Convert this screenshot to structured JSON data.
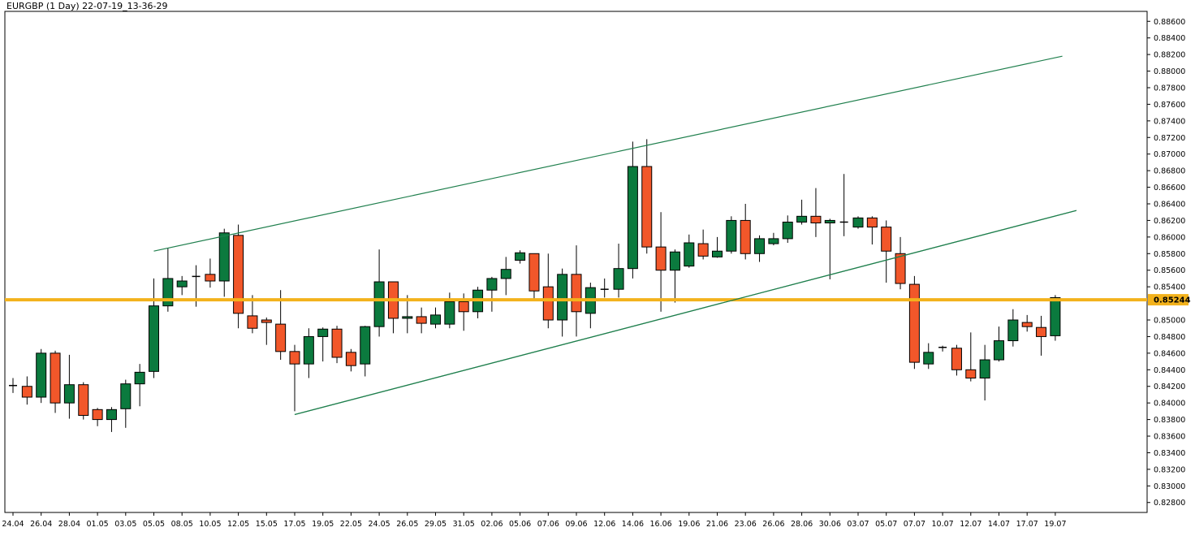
{
  "chart_data": {
    "type": "candlestick",
    "title": "EURGBP (1 Day) 22-07-19_13-36-29",
    "ylim": [
      0.8268,
      0.8872
    ],
    "colors": {
      "up": "#0b7a3e",
      "down": "#f2572a",
      "level": "#f3b21c",
      "trendline": "#1f7f4d"
    },
    "yticks": [
      "0.88600",
      "0.88400",
      "0.88200",
      "0.88000",
      "0.87800",
      "0.87600",
      "0.87400",
      "0.87200",
      "0.87000",
      "0.86800",
      "0.86600",
      "0.86400",
      "0.86200",
      "0.86000",
      "0.85800",
      "0.85600",
      "0.85400",
      "0.85244",
      "0.85000",
      "0.84800",
      "0.84600",
      "0.84400",
      "0.84200",
      "0.84000",
      "0.83800",
      "0.83600",
      "0.83400",
      "0.83200",
      "0.83000",
      "0.82800"
    ],
    "xticks": [
      {
        "label": "24.04",
        "index": 0
      },
      {
        "label": "26.04",
        "index": 2
      },
      {
        "label": "28.04",
        "index": 4
      },
      {
        "label": "01.05",
        "index": 6
      },
      {
        "label": "03.05",
        "index": 8
      },
      {
        "label": "05.05",
        "index": 10
      },
      {
        "label": "08.05",
        "index": 12
      },
      {
        "label": "10.05",
        "index": 14
      },
      {
        "label": "12.05",
        "index": 16
      },
      {
        "label": "15.05",
        "index": 18
      },
      {
        "label": "17.05",
        "index": 20
      },
      {
        "label": "19.05",
        "index": 22
      },
      {
        "label": "22.05",
        "index": 24
      },
      {
        "label": "24.05",
        "index": 26
      },
      {
        "label": "26.05",
        "index": 28
      },
      {
        "label": "29.05",
        "index": 30
      },
      {
        "label": "31.05",
        "index": 32
      },
      {
        "label": "02.06",
        "index": 34
      },
      {
        "label": "05.06",
        "index": 36
      },
      {
        "label": "07.06",
        "index": 38
      },
      {
        "label": "09.06",
        "index": 40
      },
      {
        "label": "12.06",
        "index": 42
      },
      {
        "label": "14.06",
        "index": 44
      },
      {
        "label": "16.06",
        "index": 46
      },
      {
        "label": "19.06",
        "index": 48
      },
      {
        "label": "21.06",
        "index": 50
      },
      {
        "label": "23.06",
        "index": 52
      },
      {
        "label": "26.06",
        "index": 54
      },
      {
        "label": "28.06",
        "index": 56
      },
      {
        "label": "30.06",
        "index": 58
      },
      {
        "label": "03.07",
        "index": 60
      },
      {
        "label": "05.07",
        "index": 62
      },
      {
        "label": "07.07",
        "index": 64
      },
      {
        "label": "10.07",
        "index": 66
      },
      {
        "label": "12.07",
        "index": 68
      },
      {
        "label": "14.07",
        "index": 70
      },
      {
        "label": "17.07",
        "index": 72
      },
      {
        "label": "19.07",
        "index": 74
      }
    ],
    "candles": [
      {
        "o": 0.8421,
        "h": 0.843,
        "l": 0.8412,
        "c": 0.8421
      },
      {
        "o": 0.842,
        "h": 0.8432,
        "l": 0.8398,
        "c": 0.8407
      },
      {
        "o": 0.8407,
        "h": 0.8465,
        "l": 0.84,
        "c": 0.846
      },
      {
        "o": 0.846,
        "h": 0.8463,
        "l": 0.8388,
        "c": 0.84
      },
      {
        "o": 0.84,
        "h": 0.8458,
        "l": 0.8381,
        "c": 0.8422
      },
      {
        "o": 0.8422,
        "h": 0.8425,
        "l": 0.838,
        "c": 0.8385
      },
      {
        "o": 0.8392,
        "h": 0.8394,
        "l": 0.8372,
        "c": 0.838
      },
      {
        "o": 0.838,
        "h": 0.8395,
        "l": 0.8365,
        "c": 0.8392
      },
      {
        "o": 0.8393,
        "h": 0.8428,
        "l": 0.837,
        "c": 0.8423
      },
      {
        "o": 0.8423,
        "h": 0.8447,
        "l": 0.8396,
        "c": 0.8437
      },
      {
        "o": 0.8438,
        "h": 0.855,
        "l": 0.843,
        "c": 0.8517
      },
      {
        "o": 0.8517,
        "h": 0.8587,
        "l": 0.851,
        "c": 0.855
      },
      {
        "o": 0.854,
        "h": 0.8553,
        "l": 0.853,
        "c": 0.8547
      },
      {
        "o": 0.8553,
        "h": 0.8566,
        "l": 0.8516,
        "c": 0.8552
      },
      {
        "o": 0.8555,
        "h": 0.8574,
        "l": 0.8539,
        "c": 0.8547
      },
      {
        "o": 0.8547,
        "h": 0.861,
        "l": 0.8528,
        "c": 0.8605
      },
      {
        "o": 0.8602,
        "h": 0.8615,
        "l": 0.849,
        "c": 0.8508
      },
      {
        "o": 0.8505,
        "h": 0.853,
        "l": 0.8484,
        "c": 0.849
      },
      {
        "o": 0.85,
        "h": 0.8503,
        "l": 0.847,
        "c": 0.8497
      },
      {
        "o": 0.8495,
        "h": 0.8536,
        "l": 0.8452,
        "c": 0.8462
      },
      {
        "o": 0.8462,
        "h": 0.847,
        "l": 0.839,
        "c": 0.8447
      },
      {
        "o": 0.8447,
        "h": 0.849,
        "l": 0.843,
        "c": 0.848
      },
      {
        "o": 0.848,
        "h": 0.8491,
        "l": 0.845,
        "c": 0.8489
      },
      {
        "o": 0.8489,
        "h": 0.8493,
        "l": 0.8448,
        "c": 0.8455
      },
      {
        "o": 0.8461,
        "h": 0.8465,
        "l": 0.8438,
        "c": 0.8445
      },
      {
        "o": 0.8447,
        "h": 0.8493,
        "l": 0.8432,
        "c": 0.8492
      },
      {
        "o": 0.8492,
        "h": 0.8585,
        "l": 0.848,
        "c": 0.8546
      },
      {
        "o": 0.8546,
        "h": 0.8546,
        "l": 0.8484,
        "c": 0.8502
      },
      {
        "o": 0.8502,
        "h": 0.853,
        "l": 0.8484,
        "c": 0.8504
      },
      {
        "o": 0.8504,
        "h": 0.8515,
        "l": 0.8484,
        "c": 0.8496
      },
      {
        "o": 0.8495,
        "h": 0.8515,
        "l": 0.849,
        "c": 0.8506
      },
      {
        "o": 0.8495,
        "h": 0.8533,
        "l": 0.849,
        "c": 0.8522
      },
      {
        "o": 0.8522,
        "h": 0.8532,
        "l": 0.8487,
        "c": 0.851
      },
      {
        "o": 0.851,
        "h": 0.854,
        "l": 0.8502,
        "c": 0.8536
      },
      {
        "o": 0.8536,
        "h": 0.8552,
        "l": 0.851,
        "c": 0.855
      },
      {
        "o": 0.855,
        "h": 0.8576,
        "l": 0.853,
        "c": 0.8561
      },
      {
        "o": 0.8572,
        "h": 0.8584,
        "l": 0.8568,
        "c": 0.8581
      },
      {
        "o": 0.858,
        "h": 0.858,
        "l": 0.8523,
        "c": 0.8535
      },
      {
        "o": 0.854,
        "h": 0.858,
        "l": 0.849,
        "c": 0.85
      },
      {
        "o": 0.85,
        "h": 0.8562,
        "l": 0.848,
        "c": 0.8555
      },
      {
        "o": 0.8555,
        "h": 0.859,
        "l": 0.848,
        "c": 0.851
      },
      {
        "o": 0.8508,
        "h": 0.8545,
        "l": 0.849,
        "c": 0.8539
      },
      {
        "o": 0.8537,
        "h": 0.855,
        "l": 0.8527,
        "c": 0.8537
      },
      {
        "o": 0.8537,
        "h": 0.8592,
        "l": 0.8527,
        "c": 0.8562
      },
      {
        "o": 0.8562,
        "h": 0.8715,
        "l": 0.855,
        "c": 0.8685
      },
      {
        "o": 0.8685,
        "h": 0.8718,
        "l": 0.858,
        "c": 0.8588
      },
      {
        "o": 0.8588,
        "h": 0.863,
        "l": 0.851,
        "c": 0.856
      },
      {
        "o": 0.856,
        "h": 0.8585,
        "l": 0.8521,
        "c": 0.8582
      },
      {
        "o": 0.8565,
        "h": 0.8603,
        "l": 0.8563,
        "c": 0.8593
      },
      {
        "o": 0.8592,
        "h": 0.8609,
        "l": 0.8573,
        "c": 0.8577
      },
      {
        "o": 0.8576,
        "h": 0.86,
        "l": 0.8575,
        "c": 0.8583
      },
      {
        "o": 0.8583,
        "h": 0.8625,
        "l": 0.858,
        "c": 0.862
      },
      {
        "o": 0.862,
        "h": 0.864,
        "l": 0.8573,
        "c": 0.858
      },
      {
        "o": 0.858,
        "h": 0.8602,
        "l": 0.857,
        "c": 0.8598
      },
      {
        "o": 0.8592,
        "h": 0.8605,
        "l": 0.859,
        "c": 0.8598
      },
      {
        "o": 0.8598,
        "h": 0.8626,
        "l": 0.8593,
        "c": 0.8618
      },
      {
        "o": 0.8618,
        "h": 0.8645,
        "l": 0.8615,
        "c": 0.8625
      },
      {
        "o": 0.8625,
        "h": 0.8659,
        "l": 0.86,
        "c": 0.8617
      },
      {
        "o": 0.8617,
        "h": 0.8622,
        "l": 0.8549,
        "c": 0.862
      },
      {
        "o": 0.8618,
        "h": 0.8676,
        "l": 0.8601,
        "c": 0.8618
      },
      {
        "o": 0.8612,
        "h": 0.8625,
        "l": 0.861,
        "c": 0.8623
      },
      {
        "o": 0.8623,
        "h": 0.8625,
        "l": 0.8591,
        "c": 0.8612
      },
      {
        "o": 0.8612,
        "h": 0.862,
        "l": 0.8545,
        "c": 0.8583
      },
      {
        "o": 0.858,
        "h": 0.86,
        "l": 0.8537,
        "c": 0.8544
      },
      {
        "o": 0.8543,
        "h": 0.8553,
        "l": 0.8441,
        "c": 0.8449
      },
      {
        "o": 0.8447,
        "h": 0.8472,
        "l": 0.8441,
        "c": 0.8461
      },
      {
        "o": 0.8467,
        "h": 0.8469,
        "l": 0.8462,
        "c": 0.8467
      },
      {
        "o": 0.8466,
        "h": 0.847,
        "l": 0.8433,
        "c": 0.844
      },
      {
        "o": 0.844,
        "h": 0.8485,
        "l": 0.8426,
        "c": 0.843
      },
      {
        "o": 0.843,
        "h": 0.847,
        "l": 0.8403,
        "c": 0.8452
      },
      {
        "o": 0.8452,
        "h": 0.8492,
        "l": 0.845,
        "c": 0.8475
      },
      {
        "o": 0.8475,
        "h": 0.8513,
        "l": 0.8468,
        "c": 0.85
      },
      {
        "o": 0.8497,
        "h": 0.8506,
        "l": 0.8486,
        "c": 0.8492
      },
      {
        "o": 0.8491,
        "h": 0.8505,
        "l": 0.8457,
        "c": 0.848
      },
      {
        "o": 0.8481,
        "h": 0.853,
        "l": 0.8475,
        "c": 0.8527
      }
    ],
    "level": {
      "value": 0.85244,
      "label": "0.85244"
    },
    "trendlines": [
      {
        "name": "upper-channel-line",
        "start": {
          "index": 10,
          "value": 0.8583
        },
        "end": {
          "index": 74.5,
          "value": 0.8818
        }
      },
      {
        "name": "middle-channel-line",
        "start": {
          "index": 20,
          "value": 0.8386
        },
        "end": {
          "index": 75.5,
          "value": 0.8632
        }
      },
      {
        "name": "lower-channel-line",
        "start": {
          "index": 20,
          "value": 0.8386
        },
        "end": {
          "index": 75.5,
          "value": 0.8632
        }
      }
    ]
  }
}
